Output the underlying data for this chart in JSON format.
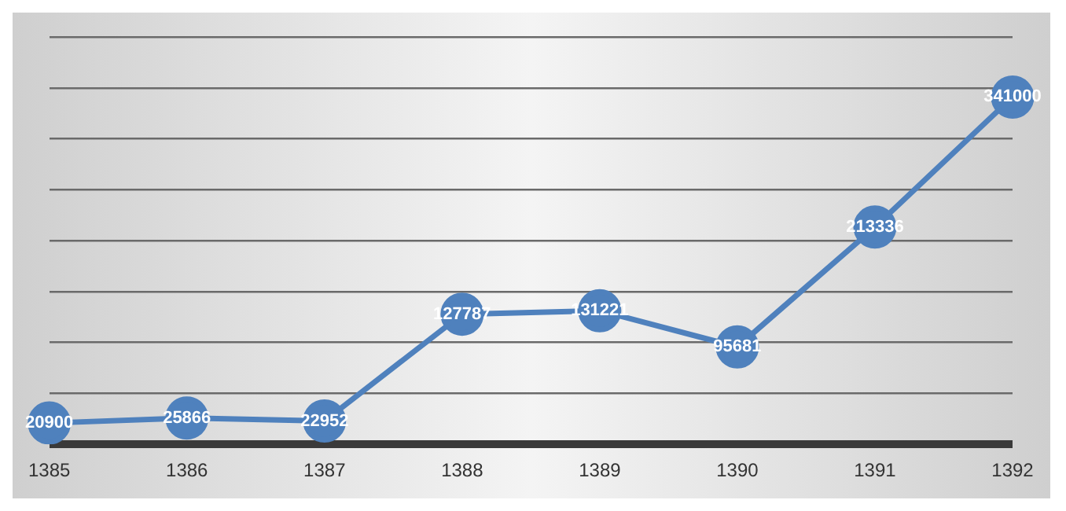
{
  "chart_data": {
    "type": "line",
    "categories": [
      "1385",
      "1386",
      "1387",
      "1388",
      "1389",
      "1390",
      "1391",
      "1392"
    ],
    "series": [
      {
        "color": "#4f81bd",
        "values": [
          20900,
          25866,
          22952,
          127787,
          131221,
          95681,
          213336,
          341000
        ]
      }
    ],
    "ylim": [
      0,
      400000
    ],
    "yticks": [
      {
        "value": 0,
        "label": null
      },
      {
        "value": 50000,
        "label": null
      },
      {
        "value": 100000,
        "label": null
      },
      {
        "value": 150000,
        "label": null
      },
      {
        "value": 200000,
        "label": null
      },
      {
        "value": 250000,
        "label": null
      },
      {
        "value": 300000,
        "label": null
      },
      {
        "value": 350000,
        "label": null
      },
      {
        "value": 400000,
        "label": null
      }
    ],
    "grid": "y",
    "marker": "circle",
    "line_style": "solid",
    "data_labels": true,
    "tick_labels": "x",
    "legend": false
  }
}
